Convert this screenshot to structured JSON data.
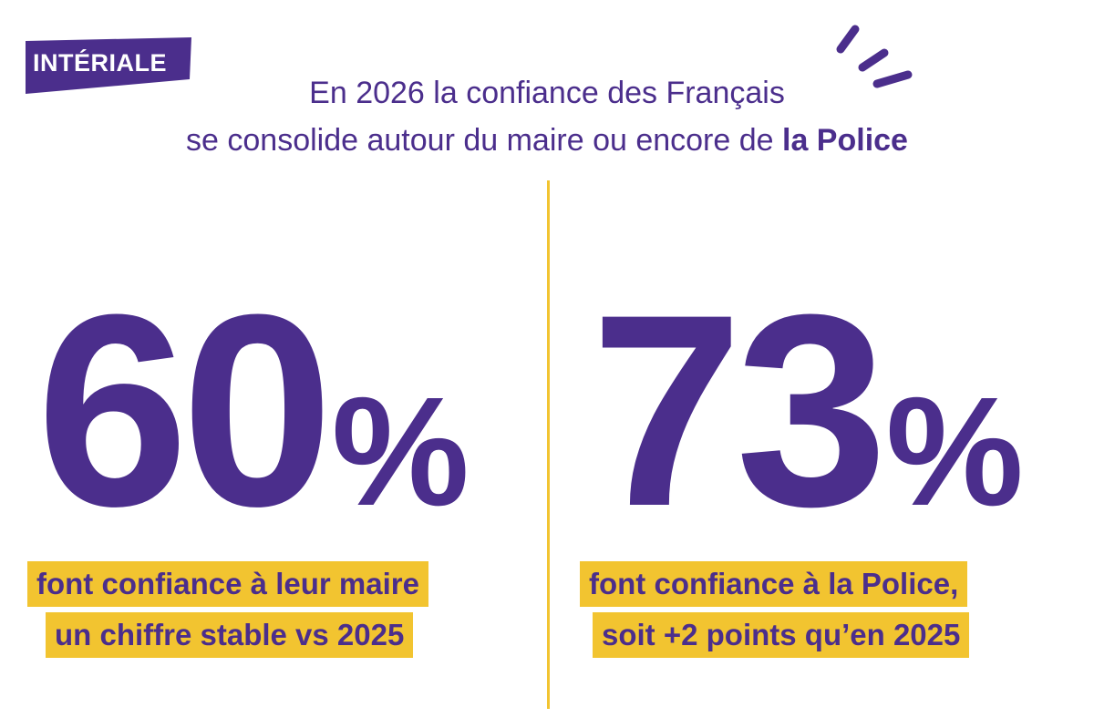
{
  "logo": {
    "text": "INTÉRIALE"
  },
  "headline": {
    "line1": "En 2026 la confiance des Français",
    "line2_regular": "se consolide autour du maire ou encore de ",
    "line2_bold": "la Police"
  },
  "stats": [
    {
      "value": "60",
      "unit": "%",
      "caption_line1": "font confiance à leur maire",
      "caption_line2": "un chiffre stable vs 2025"
    },
    {
      "value": "73",
      "unit": "%",
      "caption_line1": "font confiance à la Police,",
      "caption_line2": "soit +2 points qu’en 2025"
    }
  ],
  "colors": {
    "brand_purple": "#4b2e8c",
    "highlight_yellow": "#f2c430",
    "background": "#ffffff"
  },
  "icons": {
    "decoration": "sparkle-strokes-icon"
  }
}
